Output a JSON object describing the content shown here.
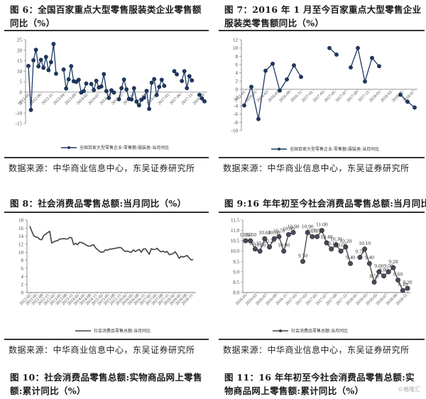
{
  "panels": [
    {
      "title": "图 6：全国百家重点大型零售服装类企业零售额同比（%）",
      "source": "数据来源：中华商业信息中心，东吴证券研究所"
    },
    {
      "title": "图 7：2016 年 1 月至今百家重点大型零售企业服装类零售额同比（%）",
      "source": "数据来源：中华商业信息中心，东吴证券研究所"
    },
    {
      "title": "图 8：社会消费品零售总额:当月同比（%）",
      "source": "数据来源：中华商业信息中心，东吴证券研究所"
    },
    {
      "title": "图 9:16 年年初至今社会消费品零售总额:当月同比(%)",
      "source": "数据来源：中华商业信息中心，东吴证券研究所"
    },
    {
      "title": "图 10：社会消费品零售总额:实物商品网上零售额:累计同比（%）"
    },
    {
      "title": "图 11：16 年年初至今社会消费品零售总额:实物商品网上零售额:累计同比（%）"
    }
  ],
  "watermark": "©格隆汇",
  "chart_data": [
    {
      "type": "line",
      "title": "图 6：全国百家重点大型零售服装类企业零售额同比（%）",
      "legend": "全国百家大型零售企业:零售额:服装类:当月同比",
      "ylim": [
        -15,
        25
      ],
      "yticks": [
        -15,
        -10,
        -5,
        0,
        5,
        10,
        15,
        20,
        25
      ],
      "xtick_labels": [
        "2012-01",
        "2012-06",
        "2012-11",
        "2013-04",
        "2013-09",
        "2014-02",
        "2014-07",
        "2014-12",
        "2015-05",
        "2015-10",
        "2016-03",
        "2016-08",
        "2017-01",
        "2017-06",
        "2017-11",
        "2018-04"
      ],
      "values": [
        12.5,
        -8.5,
        15.2,
        20.2,
        12.3,
        15.4,
        11.6,
        16.8,
        10.5,
        14.3,
        23.0,
        8.8,
        null,
        null,
        10.8,
        1.7,
        6.1,
        12.4,
        5.2,
        4.9,
        5.9,
        -0.2,
        0.5,
        4.1,
        null,
        3.9,
        1.0,
        5.4,
        2.2,
        2.7,
        8.6,
        0.5,
        -2.8,
        0.9,
        -0.2,
        null,
        -3.4,
        1.9,
        6.0,
        1.3,
        -3.2,
        -3.5,
        1.9,
        -4.5,
        -6.3,
        -3.6,
        -2.6,
        0.6,
        -8.0,
        4.5,
        6.2,
        -1.4,
        2.5,
        5.9,
        3.0,
        null,
        null,
        null,
        10.0,
        8.5,
        null,
        5.3,
        10.0,
        1.9,
        7.6,
        5.6,
        null,
        null,
        -1.3,
        -3.0,
        -4.4
      ]
    },
    {
      "type": "line",
      "title": "图 7：2016 年 1 月至今百家重点大型零售企业服装类零售额同比（%）",
      "legend": "全国百家大型零售企业:零售额:服装类:当月同比",
      "ylim": [
        -10,
        12
      ],
      "yticks": [
        -10,
        -8,
        -6,
        -4,
        -2,
        0,
        2,
        4,
        6,
        8,
        10,
        12
      ],
      "xtick_labels": [
        "2015-01",
        "2016-01",
        "2016-03",
        "2016-07",
        "2016-09",
        "2016-11",
        "2017-01",
        "2017-03",
        "2017-05",
        "2017-07",
        "2017-09",
        "2017-11",
        "2018-01",
        "2018-03",
        "2018-05",
        "2018-07"
      ],
      "values": [
        -3.9,
        0.6,
        -7.2,
        4.5,
        6.2,
        -0.3,
        2.4,
        5.8,
        3.0,
        null,
        null,
        null,
        10.0,
        8.4,
        null,
        5.3,
        10.0,
        1.9,
        7.6,
        5.6,
        null,
        null,
        -1.3,
        -3.0,
        -4.4
      ]
    },
    {
      "type": "line",
      "title": "图 8：社会消费品零售总额:当月同比（%）",
      "legend": "社会消费品零售总额:当月同比",
      "ylim": [
        0,
        18
      ],
      "yticks": [
        0,
        2,
        4,
        6,
        8,
        10,
        12,
        14,
        16,
        18
      ],
      "xtick_labels": [
        "2012-02",
        "2012-05",
        "2012-08",
        "2012-11",
        "2013-02",
        "2013-05",
        "2013-08",
        "2013-11",
        "2014-02",
        "2014-05",
        "2014-08",
        "2014-11",
        "2015-02",
        "2015-05",
        "2015-08",
        "2015-11",
        "2016-02",
        "2016-05",
        "2016-08",
        "2016-11",
        "2017-02",
        "2017-05",
        "2017-08",
        "2017-11",
        "2018-02",
        "2018-05",
        "2018-08",
        "2018-11"
      ],
      "values": [
        16.5,
        15.2,
        14.1,
        13.8,
        13.7,
        13.2,
        13.1,
        14.2,
        14.5,
        14.9,
        15.2,
        12.3,
        12.6,
        12.8,
        12.9,
        13.3,
        13.3,
        13.4,
        13.3,
        13.3,
        13.7,
        13.6,
        11.9,
        12.2,
        11.9,
        12.5,
        12.4,
        12.2,
        11.9,
        11.6,
        11.5,
        11.7,
        11.9,
        11.1,
        10.7,
        10.2,
        10.0,
        10.1,
        10.6,
        10.5,
        10.8,
        10.8,
        10.9,
        11.0,
        11.1,
        11.2,
        11.1,
        10.5,
        10.2,
        10.3,
        10.1,
        10.0,
        10.6,
        10.2,
        10.5,
        10.7,
        10.0,
        10.8,
        10.9,
        10.2,
        9.5,
        10.9,
        10.7,
        10.7,
        11.0,
        10.4,
        10.1,
        10.3,
        10.0,
        10.2,
        9.4,
        9.5,
        9.7,
        10.1,
        9.4,
        8.5,
        9.0,
        8.8,
        9.0,
        9.2,
        8.6,
        8.1,
        8.2
      ]
    },
    {
      "type": "line",
      "title": "图 9:16 年年初至今社会消费品零售总额:当月同比(%)",
      "legend": "社会消费品零售总额:当月同比",
      "ylim": [
        8.0,
        11.5
      ],
      "yticks": [
        "8.0",
        "8.5",
        "9.0",
        "9.5",
        "10.0",
        "10.5",
        "11.0",
        "11.5"
      ],
      "xtick_labels": [
        "2016-01",
        "2016-03",
        "2016-07",
        "2016-09",
        "2016-11",
        "2017-01",
        "2017-03",
        "2017-05",
        "2017-07",
        "2017-09",
        "2017-11",
        "2018-01",
        "2018-03",
        "2018-05",
        "2018-07",
        "2018-09",
        "2018-11"
      ],
      "values": [
        10.5,
        10.5,
        10.1,
        10.0,
        10.6,
        10.2,
        10.6,
        10.7,
        10.0,
        10.8,
        10.9,
        null,
        9.5,
        10.9,
        10.7,
        10.7,
        11.0,
        10.4,
        10.1,
        10.3,
        10.0,
        10.2,
        9.4,
        null,
        9.7,
        10.1,
        9.4,
        8.5,
        9.0,
        8.8,
        9.0,
        9.2,
        8.6,
        8.1,
        8.2
      ],
      "data_labels": [
        "10.50",
        "10.50",
        "10.10",
        "10.00",
        "10.60",
        "10.20",
        "10.60",
        "10.70",
        "10.00",
        "10.80",
        "10.90",
        "",
        "9.50",
        "10.90",
        "10.70",
        "10.70",
        "11.00",
        "10.40",
        "10.10",
        "10.30",
        "10.00",
        "10.20",
        "9.40",
        "",
        "9.70",
        "10.10",
        "9.40",
        "8.50",
        "9.00",
        "8.80",
        "9.00",
        "9.20",
        "8.60",
        "8.10",
        "8.20"
      ]
    }
  ]
}
